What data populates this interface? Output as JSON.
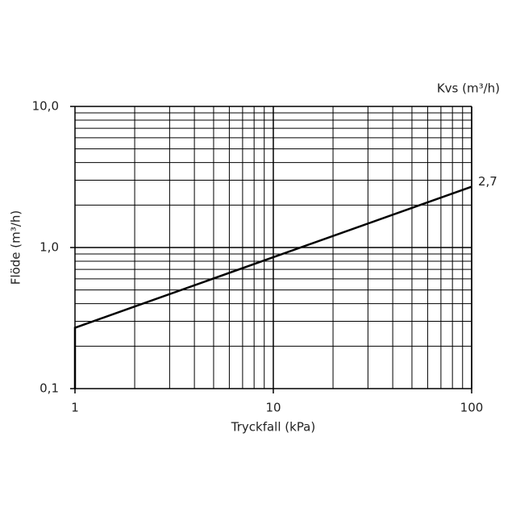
{
  "chart_data": {
    "type": "line",
    "xlabel": "Tryckfall (kPa)",
    "ylabel": "Flöde (m³/h)",
    "annotation": "Kvs (m³/h)",
    "x": [
      1,
      1,
      100
    ],
    "series": [
      {
        "name": "Kvs",
        "color": "#000000",
        "values": [
          0.1,
          0.27,
          2.7
        ],
        "value_labels": [
          null,
          null,
          "2,7"
        ]
      }
    ],
    "xlim": [
      1,
      100
    ],
    "ylim": [
      0.1,
      10
    ],
    "xscale": "log",
    "yscale": "log",
    "xticks": [
      1,
      10,
      100
    ],
    "yticks": [
      {
        "value": 0.1,
        "label": "0,1"
      },
      {
        "value": 1,
        "label": "1,0"
      },
      {
        "value": 10,
        "label": "10,0"
      }
    ],
    "xminorticks": [
      2,
      3,
      4,
      5,
      6,
      7,
      8,
      9,
      20,
      30,
      40,
      50,
      60,
      70,
      80,
      90
    ],
    "yminorticks": [
      0.2,
      0.3,
      0.4,
      0.5,
      0.6,
      0.7,
      0.8,
      0.9,
      2,
      3,
      4,
      5,
      6,
      7,
      8,
      9
    ],
    "grid": true
  }
}
